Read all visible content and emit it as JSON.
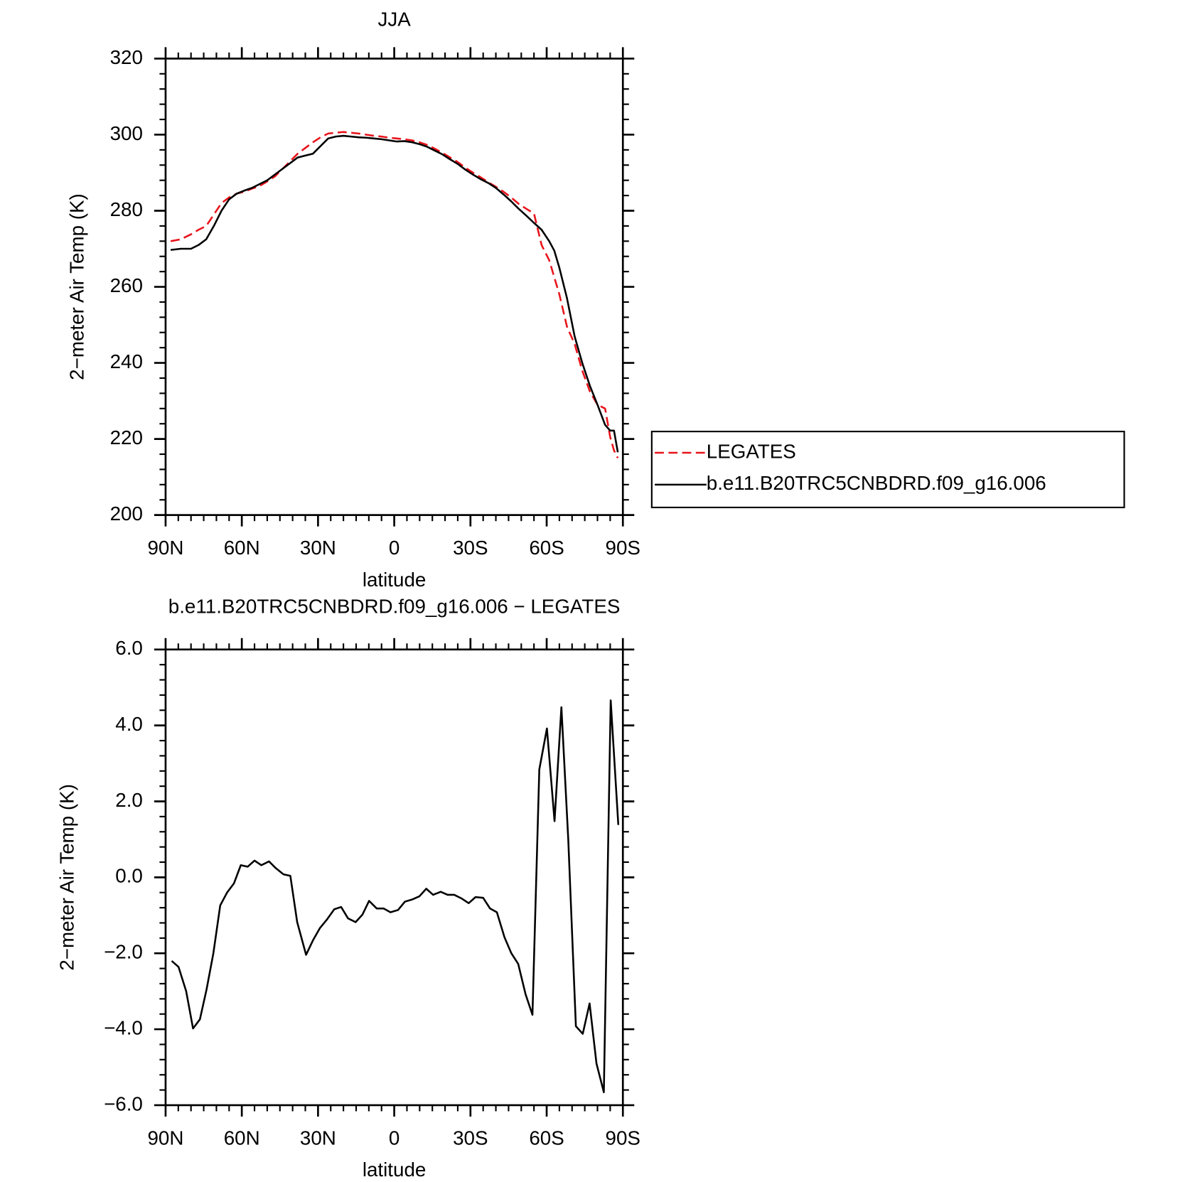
{
  "chart_data": [
    {
      "type": "line",
      "title": "JJA",
      "xlabel": "latitude",
      "ylabel": "2−meter Air Temp (K)",
      "x": [
        88,
        84,
        80,
        77,
        74,
        71,
        68,
        65,
        62,
        59,
        56,
        53,
        50,
        47,
        44,
        41,
        38,
        35,
        32,
        29,
        26,
        23,
        20,
        17,
        14,
        11,
        8,
        5,
        2,
        -1,
        -4,
        -7,
        -10,
        -13,
        -16,
        -19,
        -22,
        -25,
        -28,
        -31,
        -34,
        -37,
        -40,
        -43,
        -46,
        -49,
        -52,
        -55,
        -58,
        -61,
        -63,
        -65,
        -68,
        -71,
        -74,
        -77,
        -80,
        -83,
        -85,
        -86.5,
        -88
      ],
      "series": [
        {
          "name": "LEGATES",
          "color": "#e8141b",
          "dash": true,
          "values": [
            272,
            272.5,
            273.8,
            275,
            276,
            279,
            282,
            283.5,
            284.5,
            285,
            285.8,
            286.5,
            287.7,
            289,
            291,
            293,
            295,
            296.5,
            298,
            299.3,
            300.3,
            300.5,
            300.7,
            300.5,
            300.3,
            300,
            299.7,
            299.5,
            299.2,
            299,
            298.8,
            298.5,
            298,
            297.3,
            296.3,
            295.2,
            294,
            292.8,
            291.3,
            290,
            288.8,
            287.5,
            286.3,
            285,
            283.5,
            281.8,
            280.5,
            279.3,
            271,
            267,
            262.5,
            258,
            249.5,
            245,
            238,
            232.5,
            229,
            228,
            220.5,
            217,
            215
          ]
        },
        {
          "name": "b.e11.B20TRC5CNBDRD.f09_g16.006",
          "color": "#000000",
          "dash": false,
          "values": [
            269.7,
            270,
            270,
            271,
            272.5,
            276,
            280,
            283,
            284.5,
            285.3,
            286,
            287,
            288,
            289.5,
            291,
            292.5,
            294,
            294.5,
            295,
            297,
            299,
            299.5,
            299.7,
            299.5,
            299.3,
            299.2,
            299,
            298.8,
            298.5,
            298.2,
            298.3,
            298,
            297.5,
            296.8,
            295.8,
            294.8,
            293.5,
            292.3,
            290.8,
            289.5,
            288.3,
            287.3,
            286,
            284.3,
            282.5,
            280.5,
            278.7,
            276.8,
            275,
            272,
            269.5,
            265,
            257,
            247,
            240,
            234,
            229,
            223.7,
            222.2,
            222.2,
            216.5
          ]
        }
      ],
      "xlim": [
        90,
        -90
      ],
      "xticks": [
        {
          "value": 90,
          "label": "90N"
        },
        {
          "value": 60,
          "label": "60N"
        },
        {
          "value": 30,
          "label": "30N"
        },
        0,
        {
          "value": -30,
          "label": "30S"
        },
        {
          "value": -60,
          "label": "60S"
        },
        {
          "value": -90,
          "label": "90S"
        }
      ],
      "ylim": [
        200,
        320
      ],
      "yticks": [
        200,
        220,
        240,
        260,
        280,
        300,
        320
      ],
      "legend": "right"
    },
    {
      "type": "line",
      "title": "b.e11.B20TRC5CNBDRD.f09_g16.006 − LEGATES",
      "xlabel": "latitude",
      "ylabel": "2−meter Air Temp (K)",
      "x": [
        87.6,
        84.9,
        81.9,
        79.2,
        76.5,
        73.9,
        71.2,
        68.5,
        65.8,
        63.1,
        60.4,
        57.7,
        55.0,
        52.3,
        49.3,
        46.6,
        43.6,
        40.9,
        38.2,
        34.7,
        32.0,
        29.3,
        26.6,
        23.6,
        20.9,
        18.2,
        15.2,
        12.5,
        9.9,
        6.9,
        4.2,
        1.5,
        -1.5,
        -4.2,
        -7.2,
        -9.9,
        -12.6,
        -15.3,
        -18.3,
        -21.0,
        -23.6,
        -26.6,
        -29.3,
        -32.0,
        -35.0,
        -37.7,
        -40.4,
        -43.4,
        -46.1,
        -48.8,
        -51.7,
        -54.4,
        -57.1,
        -60.1,
        -63.1,
        -65.8,
        -68.5,
        -71.5,
        -74.2,
        -76.9,
        -79.6,
        -82.5,
        -85.2,
        -88.2
      ],
      "values": [
        -2.2,
        -2.36,
        -3.0,
        -3.98,
        -3.74,
        -2.96,
        -2.0,
        -0.74,
        -0.4,
        -0.16,
        0.32,
        0.28,
        0.44,
        0.32,
        0.42,
        0.24,
        0.08,
        0.04,
        -1.18,
        -2.04,
        -1.66,
        -1.34,
        -1.12,
        -0.84,
        -0.78,
        -1.08,
        -1.18,
        -0.98,
        -0.62,
        -0.82,
        -0.82,
        -0.92,
        -0.86,
        -0.64,
        -0.58,
        -0.5,
        -0.3,
        -0.46,
        -0.38,
        -0.46,
        -0.46,
        -0.56,
        -0.68,
        -0.52,
        -0.54,
        -0.82,
        -0.92,
        -1.58,
        -2.0,
        -2.28,
        -3.08,
        -3.62,
        2.84,
        3.92,
        1.48,
        4.48,
        1.0,
        -3.92,
        -4.12,
        -3.32,
        -4.9,
        -5.66,
        4.66,
        1.38
      ],
      "color": "#000000",
      "xlim": [
        90,
        -90
      ],
      "xticks": [
        {
          "value": 90,
          "label": "90N"
        },
        {
          "value": 60,
          "label": "60N"
        },
        {
          "value": 30,
          "label": "30N"
        },
        0,
        {
          "value": -30,
          "label": "30S"
        },
        {
          "value": -60,
          "label": "60S"
        },
        {
          "value": -90,
          "label": "90S"
        }
      ],
      "ylim": [
        -6,
        6
      ],
      "yticks": [
        {
          "value": -6,
          "label": "−6.0"
        },
        {
          "value": -4,
          "label": "−4.0"
        },
        {
          "value": -2,
          "label": "−2.0"
        },
        {
          "value": 0,
          "label": "0.0"
        },
        {
          "value": 2,
          "label": "2.0"
        },
        {
          "value": 4,
          "label": "4.0"
        },
        {
          "value": 6,
          "label": "6.0"
        }
      ]
    }
  ]
}
